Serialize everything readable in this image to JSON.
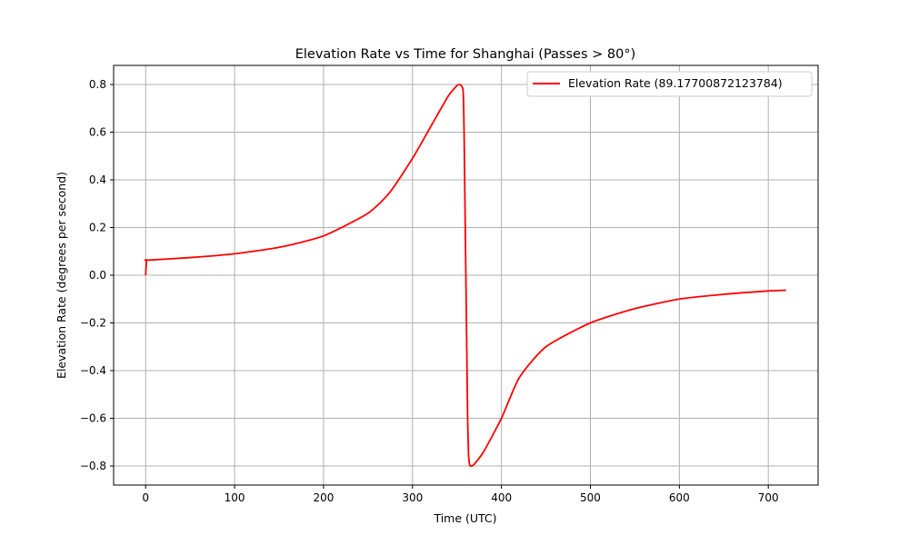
{
  "chart_data": {
    "type": "line",
    "title": "Elevation Rate vs Time for Shanghai (Passes > 80°)",
    "xlabel": "Time (UTC)",
    "ylabel": "Elevation Rate (degrees per second)",
    "xlim": [
      -36,
      756
    ],
    "ylim": [
      -0.88,
      0.88
    ],
    "xticks": [
      0,
      100,
      200,
      300,
      400,
      500,
      600,
      700
    ],
    "yticks": [
      -0.8,
      -0.6,
      -0.4,
      -0.2,
      0.0,
      0.2,
      0.4,
      0.6,
      0.8
    ],
    "ytick_labels": [
      "−0.8",
      "−0.6",
      "−0.4",
      "−0.2",
      "0.0",
      "0.2",
      "0.4",
      "0.6",
      "0.8"
    ],
    "grid": true,
    "legend_position": "top-right",
    "series": [
      {
        "name": "Elevation Rate (89.17700872123784)",
        "color": "#ff0000",
        "x": [
          0,
          1,
          2,
          50,
          100,
          150,
          200,
          250,
          275,
          300,
          320,
          340,
          350,
          353,
          355,
          357,
          358,
          359,
          360,
          361,
          362,
          363,
          364,
          365,
          367,
          370,
          380,
          400,
          420,
          450,
          500,
          550,
          600,
          650,
          700,
          720
        ],
        "y": [
          0.0,
          0.062,
          0.063,
          0.074,
          0.09,
          0.117,
          0.165,
          0.26,
          0.35,
          0.49,
          0.62,
          0.75,
          0.795,
          0.8,
          0.795,
          0.77,
          0.6,
          0.3,
          0.0,
          -0.3,
          -0.6,
          -0.75,
          -0.79,
          -0.8,
          -0.8,
          -0.79,
          -0.74,
          -0.6,
          -0.43,
          -0.3,
          -0.2,
          -0.14,
          -0.1,
          -0.08,
          -0.066,
          -0.063
        ]
      }
    ]
  }
}
